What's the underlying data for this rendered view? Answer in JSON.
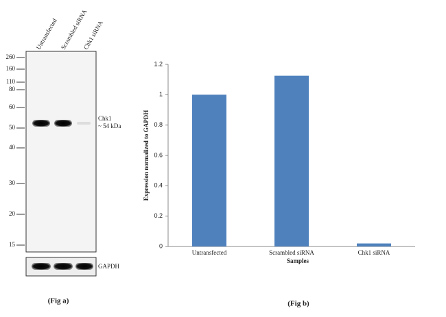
{
  "blot": {
    "lanes": [
      "Untransfected",
      "Scrambled siRNA",
      "Chk1 siRNA"
    ],
    "markers": [
      "260",
      "160",
      "110",
      "80",
      "60",
      "50",
      "40",
      "30",
      "20",
      "15"
    ],
    "band_label": [
      "Chk1",
      "~ 54 kDa"
    ],
    "loading_label": "GAPDH",
    "caption": "(Fig a)"
  },
  "chart_data": {
    "type": "bar",
    "categories": [
      "Untransfected",
      "Scrambled siRNA",
      "Chk1  siRNA"
    ],
    "values": [
      1,
      1.125,
      0.02
    ],
    "color": "#4f81bd",
    "ylim": [
      0,
      1.2
    ],
    "yticks": [
      0,
      0.2,
      0.4,
      0.6,
      0.8,
      1,
      1.2
    ],
    "x_label": "Samples",
    "y_label": "Expression normalized to GAPDH",
    "caption": "(Fig b)"
  }
}
